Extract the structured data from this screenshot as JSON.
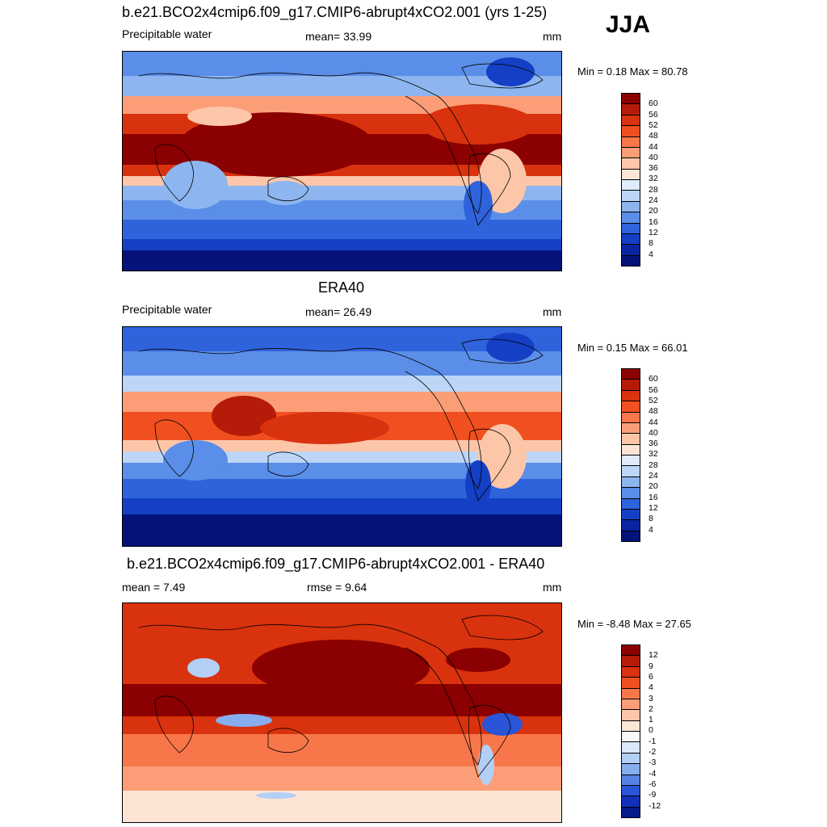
{
  "season": "JJA",
  "panels": [
    {
      "title": "b.e21.BCO2x4cmip6.f09_g17.CMIP6-abrupt4xCO2.001 (yrs 1-25)",
      "left_label": "Precipitable water",
      "center_label": "mean=  33.99",
      "units": "mm",
      "minmax": "Min =   0.18 Max =  80.78",
      "colorbar_labels": [
        "60",
        "56",
        "52",
        "48",
        "44",
        "40",
        "36",
        "32",
        "28",
        "24",
        "20",
        "16",
        "12",
        "8",
        "4"
      ]
    },
    {
      "title": "ERA40",
      "left_label": "Precipitable water",
      "center_label": "mean=  26.49",
      "units": "mm",
      "minmax": "Min =   0.15 Max =  66.01",
      "colorbar_labels": [
        "60",
        "56",
        "52",
        "48",
        "44",
        "40",
        "36",
        "32",
        "28",
        "24",
        "20",
        "16",
        "12",
        "8",
        "4"
      ]
    },
    {
      "title": "b.e21.BCO2x4cmip6.f09_g17.CMIP6-abrupt4xCO2.001 - ERA40",
      "left_label": "mean =   7.49",
      "center_label": "rmse =   9.64",
      "units": "mm",
      "minmax": "Min =  -8.48 Max =  27.65",
      "colorbar_labels": [
        "12",
        "9",
        "6",
        "4",
        "3",
        "2",
        "1",
        "0",
        "-1",
        "-2",
        "-3",
        "-4",
        "-6",
        "-9",
        "-12"
      ]
    }
  ],
  "colors": {
    "pw_scale": [
      "#8b0000",
      "#b41b08",
      "#d9320e",
      "#f0501f",
      "#f8774a",
      "#fb9e78",
      "#fdc6a8",
      "#fde5d6",
      "#e0ecfb",
      "#bdd6f7",
      "#8db6f0",
      "#5a8ee8",
      "#2f63dc",
      "#153fc4",
      "#0a25a0",
      "#04127a"
    ],
    "diff_scale": [
      "#8b0000",
      "#b41b08",
      "#d9320e",
      "#f0501f",
      "#f8774a",
      "#fb9e78",
      "#fdc6a8",
      "#fde5d6",
      "#f8f8f8",
      "#dce8fb",
      "#b4cff6",
      "#86aeef",
      "#5582e4",
      "#2a55d6",
      "#1230b8",
      "#061a88"
    ]
  }
}
